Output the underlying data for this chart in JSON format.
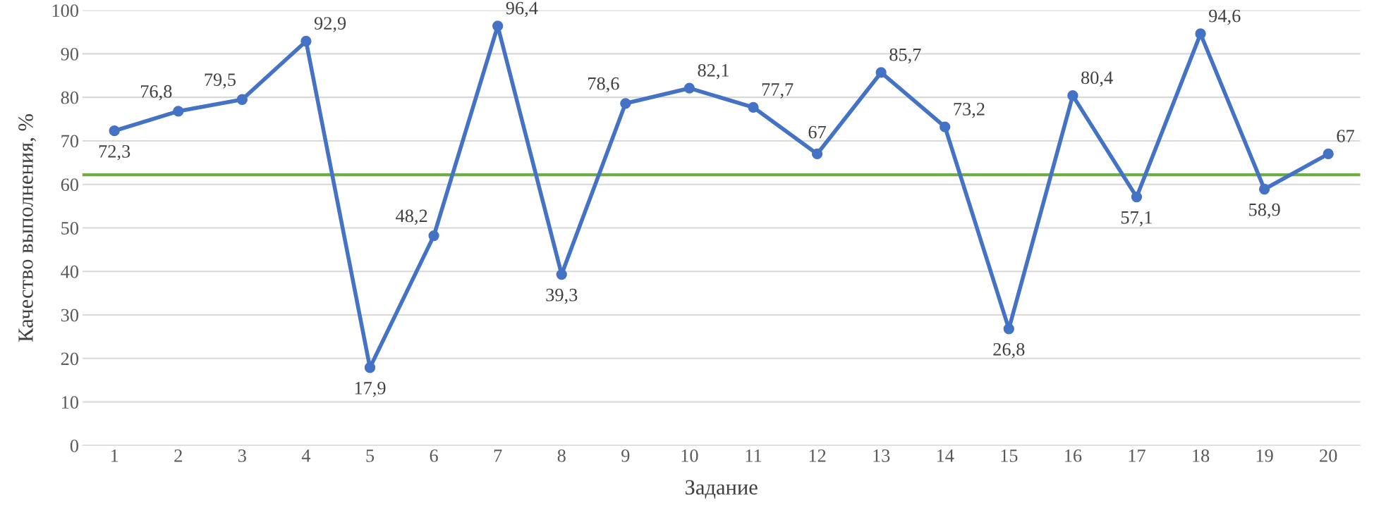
{
  "chart_data": {
    "type": "line",
    "xlabel": "Задание",
    "ylabel": "Качество выполнения, %",
    "categories": [
      "1",
      "2",
      "3",
      "4",
      "5",
      "6",
      "7",
      "8",
      "9",
      "10",
      "11",
      "12",
      "13",
      "14",
      "15",
      "16",
      "17",
      "18",
      "19",
      "20"
    ],
    "series": [
      {
        "color": "#4472c4",
        "values": [
          72.3,
          76.8,
          79.5,
          92.9,
          17.9,
          48.2,
          96.4,
          39.3,
          78.6,
          82.1,
          77.7,
          67,
          85.7,
          73.2,
          26.8,
          80.4,
          57.1,
          94.6,
          58.9,
          67
        ],
        "value_labels": [
          "72,3",
          "76,8",
          "79,5",
          "92,9",
          "17,9",
          "48,2",
          "96,4",
          "39,3",
          "78,6",
          "82,1",
          "77,7",
          "67",
          "85,7",
          "73,2",
          "26,8",
          "80,4",
          "57,1",
          "94,6",
          "58,9",
          "67"
        ]
      }
    ],
    "ylim": [
      0,
      100
    ],
    "yticks": [
      0,
      10,
      20,
      30,
      40,
      50,
      60,
      70,
      80,
      90,
      100
    ],
    "grid": "y",
    "marker": "circle",
    "line_style": "solid",
    "legend": false,
    "ref_lines": [
      {
        "axis": "y",
        "value": 62.2,
        "color": "#70ad47"
      }
    ]
  }
}
